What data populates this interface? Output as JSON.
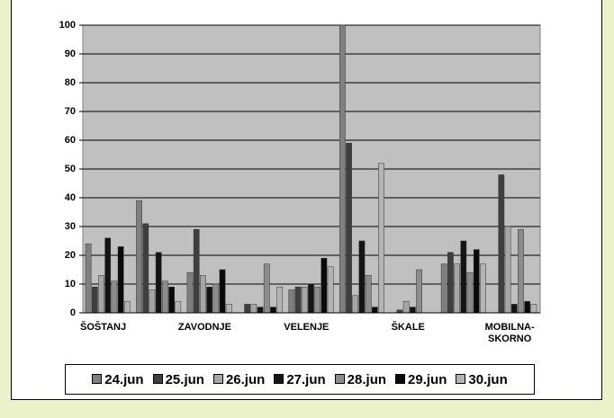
{
  "chart_data": {
    "type": "bar",
    "categories": [
      "ŠOŠTANJ",
      null,
      "ZAVODNJE",
      null,
      "VELENJE",
      null,
      "ŠKALE",
      null,
      "MOBILNA-SKORNO"
    ],
    "series": [
      {
        "name": "24.jun",
        "color": "#7f7f7f",
        "values": [
          24,
          39,
          14,
          0,
          8,
          100,
          0,
          17,
          0
        ]
      },
      {
        "name": "25.jun",
        "color": "#3f3f3f",
        "values": [
          9,
          31,
          29,
          3,
          9,
          59,
          1,
          21,
          48
        ]
      },
      {
        "name": "26.jun",
        "color": "#a6a6a6",
        "values": [
          13,
          8,
          13,
          3,
          9,
          6,
          4,
          17,
          30
        ]
      },
      {
        "name": "27.jun",
        "color": "#141414",
        "values": [
          26,
          21,
          9,
          2,
          10,
          25,
          2,
          25,
          3
        ]
      },
      {
        "name": "28.jun",
        "color": "#8c8c8c",
        "values": [
          11,
          11,
          10,
          17,
          9,
          13,
          15,
          14,
          29
        ]
      },
      {
        "name": "29.jun",
        "color": "#0a0a0a",
        "values": [
          23,
          9,
          15,
          2,
          19,
          2,
          0,
          22,
          4
        ]
      },
      {
        "name": "30.jun",
        "color": "#b4b4b4",
        "values": [
          4,
          4,
          3,
          9,
          16,
          52,
          0,
          17,
          3
        ]
      }
    ],
    "ylim": [
      0,
      100
    ],
    "yticks": [
      0,
      10,
      20,
      30,
      40,
      50,
      60,
      70,
      80,
      90,
      100
    ],
    "grid": true,
    "legend": "bottom"
  }
}
